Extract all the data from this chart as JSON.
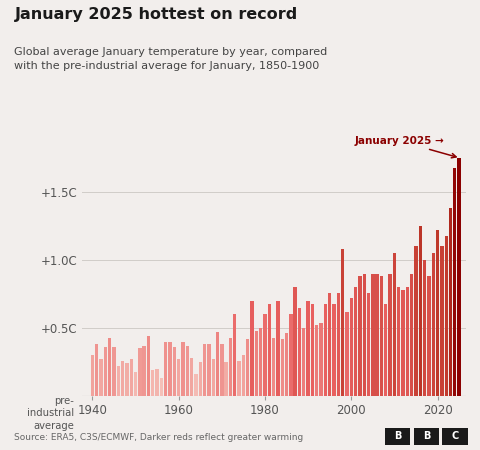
{
  "title": "January 2025 hottest on record",
  "subtitle": "Global average January temperature by year, compared\nwith the pre-industrial average for January, 1850-1900",
  "source": "Source: ERA5, C3S/ECMWF, Darker reds reflect greater warming",
  "annotation": "January 2025 →",
  "ylabel_ticks": [
    "+1.5C",
    "+1.0C",
    "+0.5C"
  ],
  "ytick_vals": [
    1.5,
    1.0,
    0.5
  ],
  "xlabel_ticks": [
    "1940",
    "1960",
    "1980",
    "2000",
    "2020"
  ],
  "years": [
    1940,
    1941,
    1942,
    1943,
    1944,
    1945,
    1946,
    1947,
    1948,
    1949,
    1950,
    1951,
    1952,
    1953,
    1954,
    1955,
    1956,
    1957,
    1958,
    1959,
    1960,
    1961,
    1962,
    1963,
    1964,
    1965,
    1966,
    1967,
    1968,
    1969,
    1970,
    1971,
    1972,
    1973,
    1974,
    1975,
    1976,
    1977,
    1978,
    1979,
    1980,
    1981,
    1982,
    1983,
    1984,
    1985,
    1986,
    1987,
    1988,
    1989,
    1990,
    1991,
    1992,
    1993,
    1994,
    1995,
    1996,
    1997,
    1998,
    1999,
    2000,
    2001,
    2002,
    2003,
    2004,
    2005,
    2006,
    2007,
    2008,
    2009,
    2010,
    2011,
    2012,
    2013,
    2014,
    2015,
    2016,
    2017,
    2018,
    2019,
    2020,
    2021,
    2022,
    2023,
    2024,
    2025
  ],
  "values": [
    0.3,
    0.38,
    0.27,
    0.36,
    0.43,
    0.36,
    0.22,
    0.26,
    0.24,
    0.27,
    0.18,
    0.35,
    0.37,
    0.44,
    0.19,
    0.2,
    0.13,
    0.4,
    0.4,
    0.36,
    0.27,
    0.4,
    0.37,
    0.28,
    0.16,
    0.25,
    0.38,
    0.38,
    0.27,
    0.47,
    0.38,
    0.25,
    0.43,
    0.6,
    0.26,
    0.3,
    0.42,
    0.7,
    0.48,
    0.5,
    0.6,
    0.68,
    0.43,
    0.7,
    0.42,
    0.46,
    0.6,
    0.8,
    0.65,
    0.5,
    0.7,
    0.68,
    0.52,
    0.54,
    0.68,
    0.76,
    0.68,
    0.76,
    1.08,
    0.62,
    0.72,
    0.8,
    0.88,
    0.9,
    0.76,
    0.9,
    0.9,
    0.88,
    0.68,
    0.9,
    1.05,
    0.8,
    0.78,
    0.8,
    0.9,
    1.1,
    1.25,
    1.0,
    0.88,
    1.05,
    1.22,
    1.1,
    1.18,
    1.38,
    1.68,
    1.75
  ],
  "background_color": "#f2eeec",
  "bar_color_min": "#f5c0b8",
  "bar_color_max": "#8b0000",
  "title_color": "#1a1a1a",
  "subtitle_color": "#444444",
  "annotation_color": "#8b0000",
  "source_color": "#666666",
  "grid_color": "#d0ccc8",
  "axis_color": "#999999",
  "ylim": [
    0,
    1.92
  ],
  "pre_industrial_label": "pre-\nindustrial\naverage"
}
